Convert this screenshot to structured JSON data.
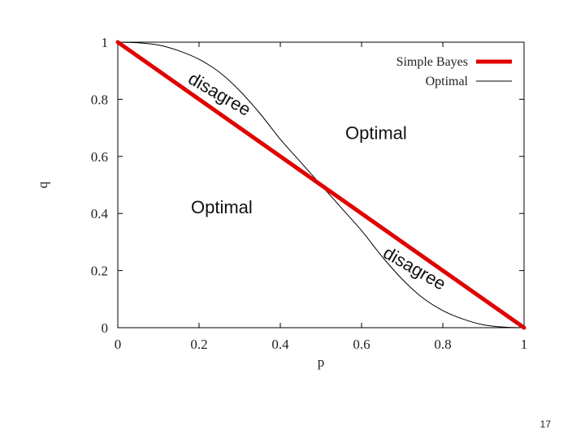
{
  "chart_data": {
    "type": "line",
    "title": "",
    "xlabel": "p",
    "ylabel": "q",
    "xlim": [
      0,
      1
    ],
    "ylim": [
      0,
      1
    ],
    "xticks": [
      "0",
      "0.2",
      "0.4",
      "0.6",
      "0.8",
      "1"
    ],
    "yticks": [
      "0",
      "0.2",
      "0.4",
      "0.6",
      "0.8",
      "1"
    ],
    "grid": false,
    "legend_position": "top-right",
    "series": [
      {
        "name": "Simple Bayes",
        "color": "#e00000",
        "x": [
          0,
          1
        ],
        "y": [
          1,
          0
        ]
      },
      {
        "name": "Optimal",
        "color": "#000000",
        "x": [
          0,
          0.05,
          0.1,
          0.15,
          0.2,
          0.25,
          0.3,
          0.35,
          0.4,
          0.45,
          0.5,
          0.55,
          0.6,
          0.65,
          0.7,
          0.75,
          0.8,
          0.85,
          0.9,
          0.95,
          1
        ],
        "y": [
          1,
          0.998,
          0.99,
          0.97,
          0.94,
          0.895,
          0.83,
          0.75,
          0.66,
          0.58,
          0.5,
          0.42,
          0.34,
          0.25,
          0.17,
          0.105,
          0.06,
          0.03,
          0.01,
          0.002,
          0
        ]
      }
    ],
    "annotations": [
      {
        "text": "disagree",
        "x": 0.17,
        "y": 0.86,
        "rotation": 30
      },
      {
        "text": "Optimal",
        "x": 0.56,
        "y": 0.66,
        "rotation": 0
      },
      {
        "text": "Optimal",
        "x": 0.18,
        "y": 0.4,
        "rotation": 0
      },
      {
        "text": "disagree",
        "x": 0.65,
        "y": 0.25,
        "rotation": 30
      }
    ]
  },
  "page_number": "17"
}
